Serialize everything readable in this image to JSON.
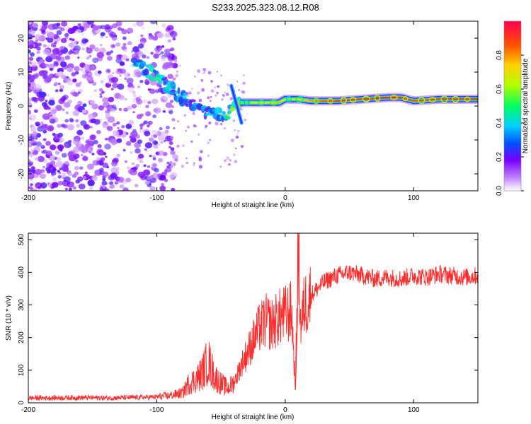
{
  "title": "S233.2025.323.08.12.R08",
  "colors": {
    "snr_line": "#ff2a2a",
    "ridge_core": "#ff2020",
    "scatter": "#8a2be2"
  },
  "chart_data": [
    {
      "type": "heatmap",
      "title": "S233.2025.323.08.12.R08",
      "xlabel": "Height of straight line (km)",
      "ylabel": "Frequency (Hz)",
      "xlim": [
        -200,
        150
      ],
      "ylim": [
        -25,
        25
      ],
      "xticks": [
        -200,
        -100,
        0,
        100
      ],
      "yticks": [
        -20,
        -10,
        0,
        10,
        20
      ],
      "colorbar": {
        "label": "Normalized spectral amplitude",
        "range": [
          0,
          1
        ],
        "ticks": [
          0.0,
          0.2,
          0.4,
          0.6,
          0.8
        ],
        "tick_labels": [
          "0.0",
          "0.2",
          "0.4",
          "0.6",
          "0.8"
        ]
      },
      "ridge": {
        "x": [
          -115,
          -105,
          -95,
          -85,
          -75,
          -65,
          -55,
          -45,
          -40,
          -35,
          -30,
          -25,
          -20,
          -15,
          -10,
          -5,
          0,
          10,
          20,
          40,
          60,
          80,
          90,
          100,
          120,
          150
        ],
        "freq": [
          12,
          10,
          7,
          4,
          1,
          -1,
          -2,
          -3,
          0,
          1,
          1,
          1,
          1,
          1,
          1,
          1,
          2,
          2,
          1.5,
          1.5,
          2,
          2.5,
          2.5,
          1.5,
          2,
          2
        ],
        "amplitude": [
          0.35,
          0.4,
          0.4,
          0.35,
          0.3,
          0.3,
          0.3,
          0.45,
          0.5,
          0.55,
          0.6,
          0.65,
          0.7,
          0.7,
          0.75,
          0.75,
          0.6,
          0.7,
          0.8,
          0.9,
          0.9,
          0.95,
          0.9,
          0.85,
          0.9,
          0.9
        ]
      }
    },
    {
      "type": "line",
      "xlabel": "Height of straight line (km)",
      "ylabel": "SNR (10 * v/v)",
      "xlim": [
        -200,
        150
      ],
      "ylim": [
        0,
        520
      ],
      "xticks": [
        -200,
        -100,
        0,
        100
      ],
      "yticks": [
        0,
        100,
        200,
        300,
        400,
        500
      ],
      "x": [
        -200,
        -180,
        -160,
        -140,
        -120,
        -100,
        -90,
        -80,
        -75,
        -70,
        -65,
        -60,
        -55,
        -50,
        -45,
        -40,
        -35,
        -30,
        -25,
        -20,
        -15,
        -10,
        -5,
        0,
        5,
        8,
        10,
        12,
        15,
        20,
        25,
        30,
        40,
        50,
        60,
        70,
        80,
        90,
        100,
        110,
        120,
        130,
        140,
        150
      ],
      "y": [
        15,
        15,
        16,
        15,
        16,
        18,
        22,
        30,
        60,
        70,
        90,
        130,
        80,
        60,
        45,
        60,
        110,
        150,
        190,
        230,
        250,
        240,
        260,
        270,
        280,
        40,
        520,
        240,
        300,
        330,
        350,
        370,
        390,
        400,
        390,
        380,
        385,
        380,
        390,
        385,
        395,
        390,
        385,
        390
      ]
    }
  ]
}
